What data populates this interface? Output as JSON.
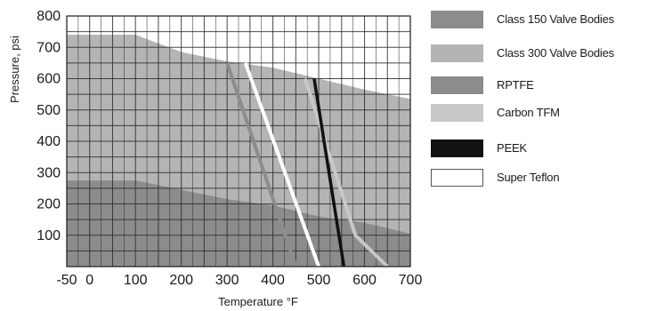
{
  "chart_data": {
    "type": "line",
    "xlabel": "Temperature °F",
    "ylabel": "Pressure, psi",
    "xlim": [
      -50,
      700
    ],
    "ylim": [
      0,
      800
    ],
    "x_ticks": [
      -50,
      0,
      100,
      200,
      300,
      400,
      500,
      600,
      700
    ],
    "y_ticks": [
      100,
      200,
      300,
      400,
      500,
      600,
      700,
      800
    ],
    "grid": true,
    "legend_position": "right",
    "series": [
      {
        "name": "Class 150 Valve Bodies",
        "kind": "area",
        "color": "#8c8c8c",
        "points": [
          [
            -50,
            275
          ],
          [
            100,
            275
          ],
          [
            200,
            245
          ],
          [
            300,
            215
          ],
          [
            400,
            195
          ],
          [
            500,
            160
          ],
          [
            600,
            140
          ],
          [
            700,
            105
          ]
        ]
      },
      {
        "name": "Class 300 Valve Bodies",
        "kind": "area",
        "color": "#b4b4b4",
        "points": [
          [
            -50,
            740
          ],
          [
            100,
            740
          ],
          [
            200,
            685
          ],
          [
            300,
            655
          ],
          [
            400,
            635
          ],
          [
            500,
            600
          ],
          [
            600,
            565
          ],
          [
            700,
            535
          ]
        ]
      },
      {
        "name": "RPTFE",
        "kind": "line",
        "color": "#8c8c8c",
        "points": [
          [
            300,
            650
          ],
          [
            450,
            0
          ]
        ]
      },
      {
        "name": "Carbon TFM",
        "kind": "line",
        "color": "#c8c8c8",
        "points": [
          [
            470,
            600
          ],
          [
            580,
            100
          ],
          [
            650,
            0
          ]
        ]
      },
      {
        "name": "PEEK",
        "kind": "line",
        "color": "#111111",
        "points": [
          [
            490,
            600
          ],
          [
            555,
            0
          ]
        ]
      },
      {
        "name": "Super Teflon",
        "kind": "line",
        "color": "#ffffff",
        "points": [
          [
            340,
            650
          ],
          [
            500,
            0
          ]
        ]
      }
    ]
  }
}
